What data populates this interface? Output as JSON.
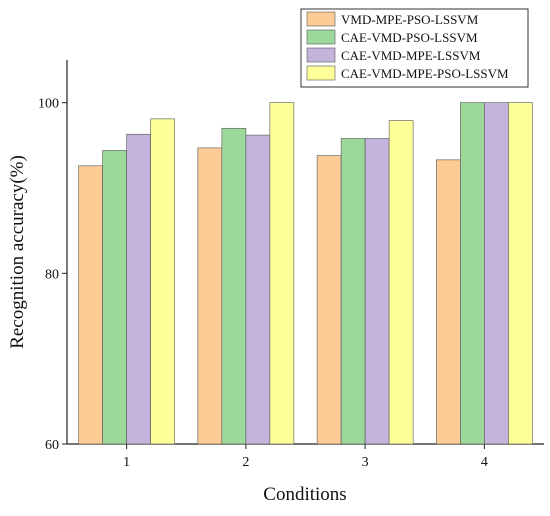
{
  "chart_data": {
    "type": "bar",
    "title": "",
    "xlabel": "Conditions",
    "ylabel": "Recognition accuracy(%)",
    "categories": [
      "1",
      "2",
      "3",
      "4"
    ],
    "ylim": [
      60,
      105
    ],
    "yticks": [
      60,
      80,
      100
    ],
    "grid": false,
    "legend_position": "top-right",
    "series": [
      {
        "name": "VMD-MPE-PSO-LSSVM",
        "color": "#FCCB96",
        "values": [
          92.6,
          94.7,
          93.8,
          93.3
        ]
      },
      {
        "name": "CAE-VMD-PSO-LSSVM",
        "color": "#9CD89A",
        "values": [
          94.4,
          97.0,
          95.8,
          100.0
        ]
      },
      {
        "name": "CAE-VMD-MPE-LSSVM",
        "color": "#C4B4DC",
        "values": [
          96.3,
          96.2,
          95.8,
          100.0
        ]
      },
      {
        "name": "CAE-VMD-MPE-PSO-LSSVM",
        "color": "#FFFF99",
        "values": [
          98.1,
          100.0,
          97.9,
          100.0
        ]
      }
    ]
  }
}
